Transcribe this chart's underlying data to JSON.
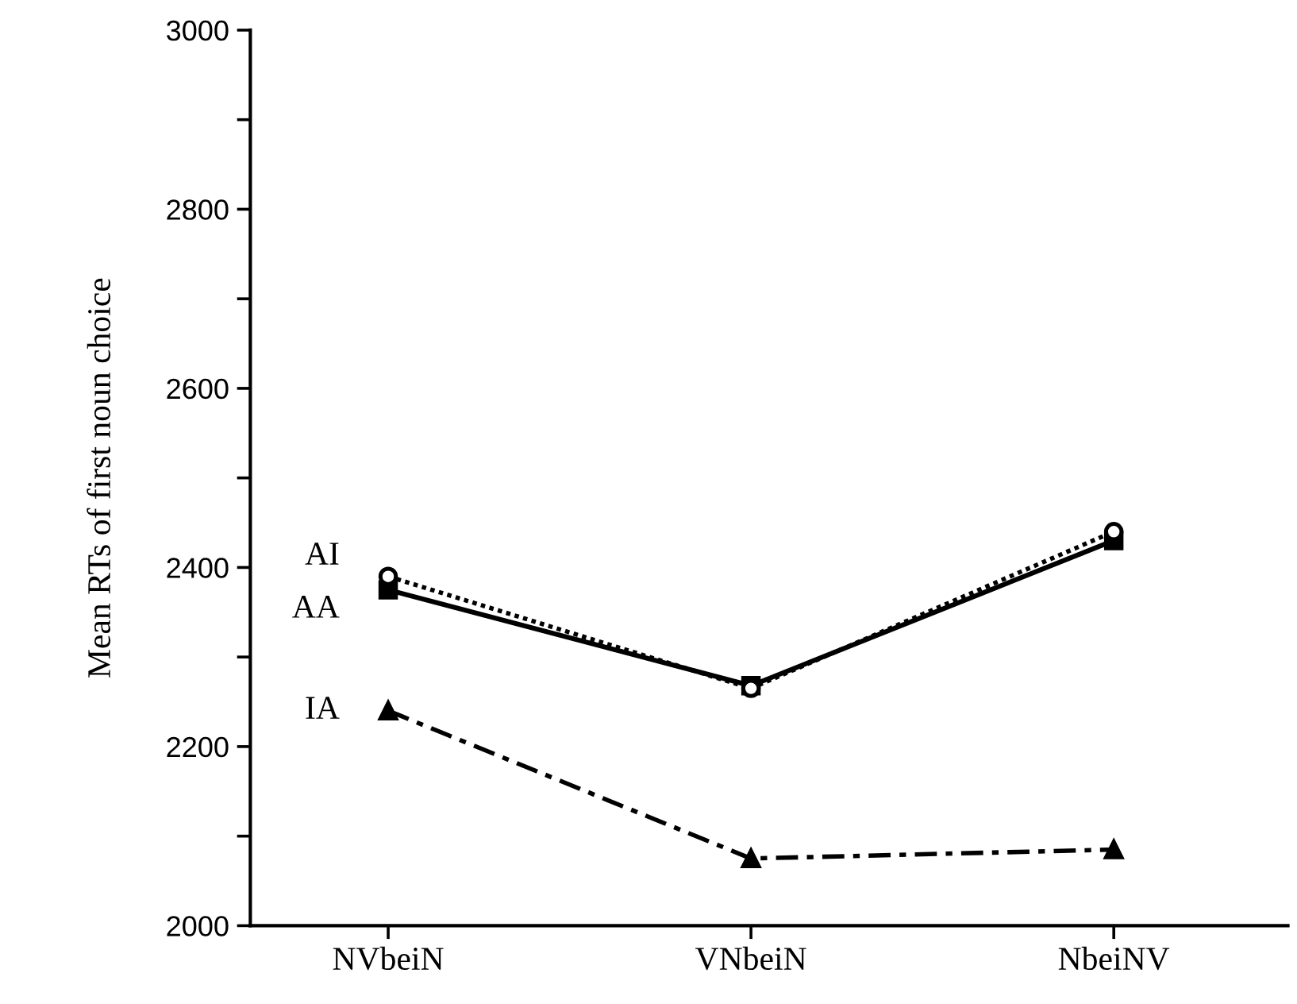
{
  "chart_data": {
    "type": "line",
    "ylabel": "Mean RTs of first noun choice",
    "categories": [
      "NVbeiN",
      "VNbeiN",
      "NbeiNV"
    ],
    "series": [
      {
        "name": "AI",
        "color": "#000000",
        "values": [
          2390,
          2265,
          2440
        ],
        "marker": "circle",
        "line_style": "dotted"
      },
      {
        "name": "AA",
        "color": "#000000",
        "values": [
          2375,
          2268,
          2430
        ],
        "marker": "square",
        "line_style": "solid"
      },
      {
        "name": "IA",
        "color": "#000000",
        "values": [
          2240,
          2075,
          2085
        ],
        "marker": "triangle",
        "line_style": "dashed"
      }
    ],
    "ylim": [
      2000,
      3000
    ],
    "yticks": [
      2000,
      {
        "value": 2100,
        "label": null
      },
      2200,
      {
        "value": 2300,
        "label": null
      },
      2400,
      {
        "value": 2500,
        "label": null
      },
      2600,
      {
        "value": 2700,
        "label": null
      },
      2800,
      {
        "value": 2900,
        "label": null
      },
      3000
    ],
    "grid": false,
    "legend": false
  }
}
